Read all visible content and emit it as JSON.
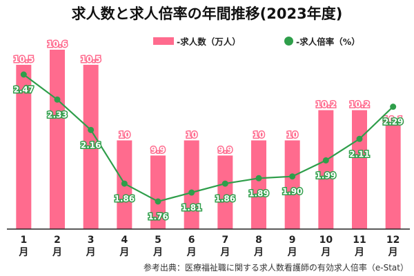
{
  "chart_data": {
    "type": "bar",
    "title": "求人数と求人倍率の年間推移(2023年度)",
    "categories": [
      "1月",
      "2月",
      "3月",
      "4月",
      "5月",
      "6月",
      "7月",
      "8月",
      "9月",
      "10月",
      "11月",
      "12月"
    ],
    "category_labels": [
      {
        "num": "1",
        "unit": "月"
      },
      {
        "num": "2",
        "unit": "月"
      },
      {
        "num": "3",
        "unit": "月"
      },
      {
        "num": "4",
        "unit": "月"
      },
      {
        "num": "5",
        "unit": "月"
      },
      {
        "num": "6",
        "unit": "月"
      },
      {
        "num": "7",
        "unit": "月"
      },
      {
        "num": "8",
        "unit": "月"
      },
      {
        "num": "9",
        "unit": "月"
      },
      {
        "num": "10",
        "unit": "月"
      },
      {
        "num": "11",
        "unit": "月"
      },
      {
        "num": "12",
        "unit": "月"
      }
    ],
    "series": [
      {
        "name": "-求人数（万人）",
        "type": "bar",
        "color": "#ff6b8e",
        "values": [
          10.5,
          10.6,
          10.5,
          10,
          9.9,
          10,
          9.9,
          10,
          10,
          10.2,
          10.2,
          10.1
        ],
        "labels": [
          "10.5",
          "10.6",
          "10.5",
          "10",
          "9.9",
          "10",
          "9.9",
          "10",
          "10",
          "10.2",
          "10.2",
          "10.1"
        ]
      },
      {
        "name": "-求人倍率（%）",
        "type": "line",
        "color": "#2e9e4a",
        "values": [
          2.47,
          2.33,
          2.16,
          1.86,
          1.76,
          1.81,
          1.86,
          1.89,
          1.9,
          1.99,
          2.11,
          2.29
        ],
        "labels": [
          "2.47",
          "2.33",
          "2.16",
          "1.86",
          "1.76",
          "1.81",
          "1.86",
          "1.89",
          "1.90",
          "1.99",
          "2.11",
          "2.29"
        ]
      }
    ],
    "legend_position": "top-right",
    "grid": false,
    "source": "参考出典：医療福祉職に関する求人数看護師の有効求人倍率（e-Stat）"
  }
}
